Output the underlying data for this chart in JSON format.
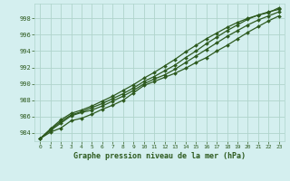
{
  "xlabel": "Graphe pression niveau de la mer (hPa)",
  "xlim": [
    -0.5,
    23.5
  ],
  "ylim": [
    983.0,
    999.8
  ],
  "yticks": [
    984,
    986,
    988,
    990,
    992,
    994,
    996,
    998
  ],
  "xticks": [
    0,
    1,
    2,
    3,
    4,
    5,
    6,
    7,
    8,
    9,
    10,
    11,
    12,
    13,
    14,
    15,
    16,
    17,
    18,
    19,
    20,
    21,
    22,
    23
  ],
  "background_color": "#d4efef",
  "grid_color": "#b0d4cc",
  "line_color": "#2d5a1e",
  "lines": [
    [
      983.3,
      984.1,
      984.6,
      985.5,
      985.8,
      986.3,
      986.9,
      987.4,
      988.0,
      988.9,
      989.8,
      990.3,
      990.8,
      991.3,
      991.9,
      992.6,
      993.2,
      994.0,
      994.7,
      995.5,
      996.3,
      997.0,
      997.7,
      998.3
    ],
    [
      983.3,
      984.3,
      985.2,
      986.1,
      986.5,
      986.8,
      987.3,
      987.9,
      988.5,
      989.2,
      990.0,
      990.6,
      991.1,
      991.8,
      992.6,
      993.4,
      994.2,
      995.0,
      995.8,
      996.5,
      997.2,
      997.8,
      998.3,
      998.8
    ],
    [
      983.3,
      984.4,
      985.4,
      986.2,
      986.6,
      987.1,
      987.6,
      988.2,
      988.8,
      989.5,
      990.3,
      990.9,
      991.6,
      992.3,
      993.2,
      994.0,
      994.9,
      995.7,
      996.5,
      997.2,
      997.9,
      998.4,
      998.8,
      999.1
    ],
    [
      983.3,
      984.5,
      985.6,
      986.4,
      986.8,
      987.3,
      987.9,
      988.5,
      989.2,
      989.9,
      990.7,
      991.4,
      992.2,
      993.0,
      993.9,
      994.7,
      995.5,
      996.2,
      996.9,
      997.5,
      998.0,
      998.4,
      998.7,
      999.3
    ]
  ]
}
